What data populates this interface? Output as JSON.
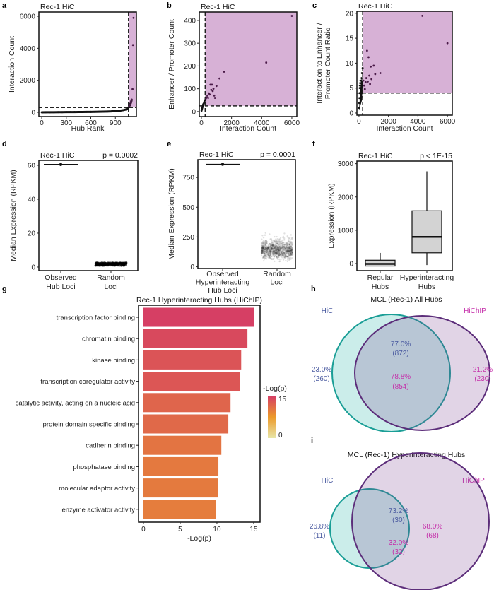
{
  "chart_data": [
    {
      "panel_label": "a",
      "type": "scatter",
      "title": "Rec-1 HiC",
      "xlabel": "Hub Rank",
      "ylabel": "Interaction Count",
      "xticks": [
        0,
        300,
        600,
        900
      ],
      "yticks": [
        0,
        2000,
        4000,
        6000
      ],
      "xlim": [
        -35,
        1157
      ],
      "ylim": [
        -265,
        6265
      ],
      "thresholds": {
        "x": 1060,
        "y": 300
      },
      "highlight_color": "#d7b1d6",
      "points": [
        [
          0,
          2
        ],
        [
          50,
          4
        ],
        [
          100,
          6
        ],
        [
          150,
          8
        ],
        [
          200,
          10
        ],
        [
          250,
          12
        ],
        [
          300,
          14
        ],
        [
          350,
          16
        ],
        [
          400,
          18
        ],
        [
          450,
          20
        ],
        [
          500,
          23
        ],
        [
          550,
          26
        ],
        [
          600,
          29
        ],
        [
          650,
          33
        ],
        [
          700,
          38
        ],
        [
          750,
          44
        ],
        [
          800,
          52
        ],
        [
          850,
          62
        ],
        [
          900,
          78
        ],
        [
          950,
          100
        ],
        [
          1000,
          140
        ],
        [
          1030,
          180
        ],
        [
          1050,
          240
        ],
        [
          1060,
          300
        ],
        [
          1070,
          380
        ],
        [
          1080,
          480
        ],
        [
          1090,
          600
        ],
        [
          1095,
          700
        ],
        [
          1100,
          800
        ],
        [
          1110,
          1450
        ],
        [
          1115,
          4200
        ],
        [
          1122,
          5900
        ]
      ]
    },
    {
      "panel_label": "b",
      "type": "scatter",
      "title": "Rec-1 HiC",
      "xlabel": "Interaction Count",
      "ylabel": "Enhancer / Promoter Count",
      "xticks": [
        0,
        2000,
        4000,
        6000
      ],
      "yticks": [
        0,
        100,
        200,
        300,
        400
      ],
      "xlim": [
        -140,
        6330
      ],
      "ylim": [
        -22,
        437
      ],
      "thresholds": {
        "x": 250,
        "y": 25
      },
      "highlight_color": "#d7b1d6",
      "points": [
        [
          10,
          4
        ],
        [
          20,
          8
        ],
        [
          30,
          10
        ],
        [
          40,
          12
        ],
        [
          50,
          15
        ],
        [
          60,
          18
        ],
        [
          80,
          22
        ],
        [
          100,
          28
        ],
        [
          120,
          32
        ],
        [
          150,
          35
        ],
        [
          180,
          40
        ],
        [
          200,
          45
        ],
        [
          250,
          50
        ],
        [
          300,
          58
        ],
        [
          350,
          62
        ],
        [
          400,
          70
        ],
        [
          450,
          60
        ],
        [
          500,
          80
        ],
        [
          550,
          75
        ],
        [
          600,
          118
        ],
        [
          650,
          95
        ],
        [
          700,
          118
        ],
        [
          750,
          90
        ],
        [
          800,
          100
        ],
        [
          850,
          70
        ],
        [
          900,
          60
        ],
        [
          1000,
          112
        ],
        [
          1200,
          145
        ],
        [
          1500,
          175
        ],
        [
          4300,
          215
        ],
        [
          6000,
          420
        ]
      ]
    },
    {
      "panel_label": "c",
      "type": "scatter",
      "title": "Rec-1 HiC",
      "xlabel": "Interaction Count",
      "ylabel": [
        "Interaction to Enhancer /",
        "Promoter Count Ratio"
      ],
      "xticks": [
        0,
        2000,
        4000,
        6000
      ],
      "yticks": [
        0,
        5,
        10,
        15,
        20
      ],
      "xlim": [
        -140,
        6330
      ],
      "ylim": [
        -0.43,
        20.4
      ],
      "thresholds": {
        "x": 250,
        "y": 4
      },
      "highlight_color": "#d7b1d6",
      "points": [
        [
          10,
          1
        ],
        [
          20,
          2
        ],
        [
          30,
          3
        ],
        [
          40,
          4
        ],
        [
          50,
          5
        ],
        [
          60,
          5.5
        ],
        [
          80,
          6
        ],
        [
          100,
          6.5
        ],
        [
          120,
          5
        ],
        [
          150,
          4.5
        ],
        [
          180,
          7
        ],
        [
          200,
          8
        ],
        [
          250,
          9
        ],
        [
          300,
          6.5
        ],
        [
          350,
          5.5
        ],
        [
          400,
          4.8
        ],
        [
          450,
          6.2
        ],
        [
          500,
          7
        ],
        [
          550,
          12.5
        ],
        [
          600,
          6.3
        ],
        [
          650,
          11.2
        ],
        [
          700,
          7.5
        ],
        [
          750,
          5.8
        ],
        [
          800,
          9.3
        ],
        [
          850,
          6.8
        ],
        [
          1000,
          9.5
        ],
        [
          1100,
          7.8
        ],
        [
          1450,
          8
        ],
        [
          4300,
          19.5
        ],
        [
          6000,
          14
        ]
      ]
    },
    {
      "panel_label": "d",
      "type": "strip",
      "title": "Rec-1 HiC",
      "p_label": "p = 0.0002",
      "ylabel": "Median Expression (RPKM)",
      "categories": [
        [
          "Observed",
          "Hub Loci"
        ],
        [
          "Random",
          "Loci"
        ]
      ],
      "yticks": [
        0,
        20,
        40,
        60
      ],
      "ylim": [
        -2.1,
        62.9
      ],
      "observed": 60.5,
      "random_range": [
        0.8,
        2.6
      ]
    },
    {
      "panel_label": "e",
      "type": "strip",
      "title": "Rec-1 HiC",
      "p_label": "p = 0.0001",
      "ylabel": "Median Expression (RPKM)",
      "categories": [
        [
          "Observed",
          "Hyperinteracting",
          "Hub Loci"
        ],
        [
          "Random",
          "Loci"
        ]
      ],
      "yticks": [
        0,
        250,
        500,
        750
      ],
      "ylim": [
        -14.5,
        899
      ],
      "observed": 860,
      "random_range": [
        30,
        310
      ],
      "random_core": [
        50,
        200
      ]
    },
    {
      "panel_label": "f",
      "type": "box",
      "title": "Rec-1 HiC",
      "p_label": "p < 1E-15",
      "ylabel": "Expression (RPKM)",
      "categories": [
        [
          "Regular",
          "Hubs"
        ],
        [
          "Hyperinteracting",
          "Hubs"
        ]
      ],
      "yticks": [
        0,
        1000,
        2000,
        3000
      ],
      "ylim": [
        -212,
        3077
      ],
      "boxes": [
        {
          "lower": -75,
          "q1": -75,
          "median": -10,
          "q3": 100,
          "upper": 320
        },
        {
          "lower": -46,
          "q1": 323,
          "median": 800,
          "q3": 1585,
          "upper": 2770
        }
      ],
      "box_color": "#d3d3d3"
    },
    {
      "panel_label": "g",
      "type": "bar",
      "orientation": "horizontal",
      "title": "Rec-1 Hyperinteracting Hubs (HiChIP)",
      "xlabel": "-Log(p)",
      "categories": [
        "transcription factor binding",
        "chromatin binding",
        "kinase binding",
        "transcription coregulator activity",
        "catalytic activity, acting on a nucleic acid",
        "protein domain specific binding",
        "cadherin binding",
        "phosphatase binding",
        "molecular adaptor activity",
        "enzyme activator activity"
      ],
      "values": [
        15.05,
        14.15,
        13.3,
        13.1,
        11.85,
        11.55,
        10.6,
        10.2,
        10.15,
        9.9
      ],
      "xticks": [
        0,
        5,
        10,
        15
      ],
      "xlim": [
        -0.67,
        15.87
      ],
      "legend": {
        "title": "-Log(p)",
        "ticks": [
          15,
          0
        ],
        "placement": "right"
      },
      "color_scale": {
        "low": "#e8e6a8",
        "mid": "#ec9a2a",
        "high": "#d63f64"
      }
    },
    {
      "panel_label": "h",
      "type": "venn",
      "title": "MCL (Rec-1) All Hubs",
      "sets": [
        "HiC",
        "HiChIP"
      ],
      "hic_only": {
        "pct": "23.0%",
        "count": "(260)"
      },
      "overlap_hic": {
        "pct": "77.0%",
        "count": "(872)"
      },
      "overlap_hichip": {
        "pct": "78.8%",
        "count": "(854)"
      },
      "hichip_only": {
        "pct": "21.2%",
        "count": "(230)"
      },
      "colors": {
        "hic": "#1a9e96",
        "hichip": "#5c2d7a",
        "hic_text": "#4a5aa0",
        "hichip_text": "#c530aa"
      }
    },
    {
      "panel_label": "i",
      "type": "venn",
      "title": "MCL (Rec-1) Hyperinteracting Hubs",
      "sets": [
        "HiC",
        "HiChIP"
      ],
      "hic_only": {
        "pct": "26.8%",
        "count": "(11)"
      },
      "overlap_hic": {
        "pct": "73.2%",
        "count": "(30)"
      },
      "overlap_hichip": {
        "pct": "32.0%",
        "count": "(32)"
      },
      "hichip_only": {
        "pct": "68.0%",
        "count": "(68)"
      },
      "colors": {
        "hic": "#1a9e96",
        "hichip": "#5c2d7a",
        "hic_text": "#4a5aa0",
        "hichip_text": "#c530aa"
      }
    }
  ]
}
